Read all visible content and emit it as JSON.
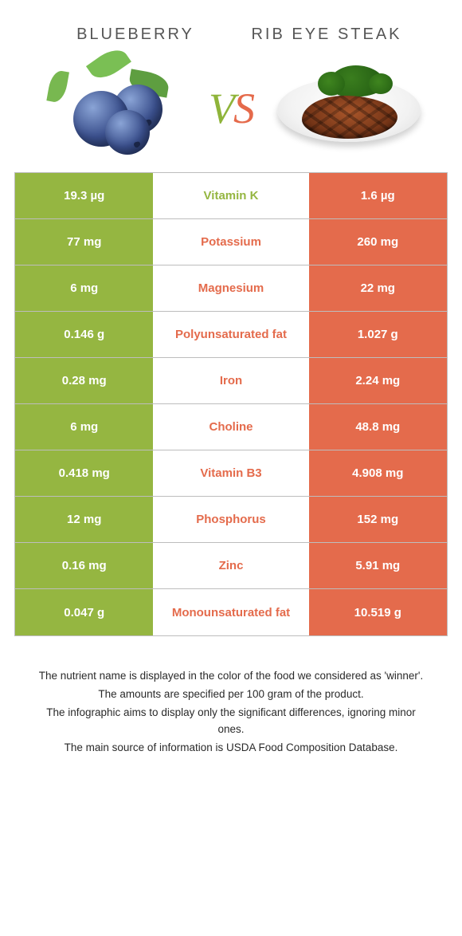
{
  "colors": {
    "left": "#95b641",
    "right": "#e46b4c",
    "border": "#bdbdbd"
  },
  "header": {
    "left_title": "Blueberry",
    "right_title": "Rib eye steak",
    "vs_v": "V",
    "vs_s": "S"
  },
  "rows": [
    {
      "left": "19.3 µg",
      "label": "Vitamin K",
      "right": "1.6 µg",
      "winner": "left"
    },
    {
      "left": "77 mg",
      "label": "Potassium",
      "right": "260 mg",
      "winner": "right"
    },
    {
      "left": "6 mg",
      "label": "Magnesium",
      "right": "22 mg",
      "winner": "right"
    },
    {
      "left": "0.146 g",
      "label": "Polyunsaturated fat",
      "right": "1.027 g",
      "winner": "right"
    },
    {
      "left": "0.28 mg",
      "label": "Iron",
      "right": "2.24 mg",
      "winner": "right"
    },
    {
      "left": "6 mg",
      "label": "Choline",
      "right": "48.8 mg",
      "winner": "right"
    },
    {
      "left": "0.418 mg",
      "label": "Vitamin B3",
      "right": "4.908 mg",
      "winner": "right"
    },
    {
      "left": "12 mg",
      "label": "Phosphorus",
      "right": "152 mg",
      "winner": "right"
    },
    {
      "left": "0.16 mg",
      "label": "Zinc",
      "right": "5.91 mg",
      "winner": "right"
    },
    {
      "left": "0.047 g",
      "label": "Monounsaturated fat",
      "right": "10.519 g",
      "winner": "right"
    }
  ],
  "footer": {
    "l1": "The nutrient name is displayed in the color of the food we considered as 'winner'.",
    "l2": "The amounts are specified per 100 gram of the product.",
    "l3": "The infographic aims to display only the significant differences, ignoring minor ones.",
    "l4": "The main source of information is USDA Food Composition Database."
  }
}
